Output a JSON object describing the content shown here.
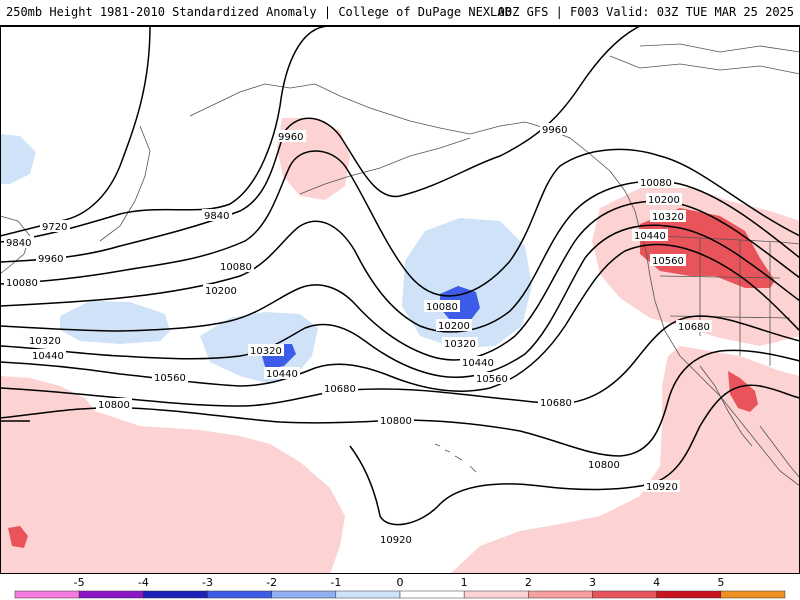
{
  "header": {
    "left": "250mb Height 1981-2010 Standardized Anomaly | College of DuPage NEXLAB",
    "right": "00Z GFS | F003 Valid: 03Z TUE MAR 25 2025"
  },
  "map": {
    "region": "North Pacific / North America",
    "fields": "250mb geopotential height contours with standardized anomaly shading",
    "contour_labels": [
      "9960",
      "9960",
      "9840",
      "9720",
      "9840",
      "9960",
      "10080",
      "10080",
      "10200",
      "10320",
      "10440",
      "10560",
      "10320",
      "10440",
      "10080",
      "10200",
      "10320",
      "10440",
      "10560",
      "10680",
      "10680",
      "10800",
      "10800",
      "10800",
      "10920",
      "10920",
      "10080",
      "10200",
      "10320",
      "10440",
      "10560",
      "10680"
    ]
  },
  "colorbar": {
    "ticks": [
      "-5",
      "-4",
      "-3",
      "-2",
      "-1",
      "0",
      "1",
      "2",
      "3",
      "4",
      "5"
    ],
    "colors": [
      "#f47ae0",
      "#8d17c6",
      "#1a22b8",
      "#3d5de8",
      "#8fb0f0",
      "#cfe2f8",
      "#ffffff",
      "#fcd2d2",
      "#f7a0a0",
      "#e9545a",
      "#c8141e",
      "#f09020"
    ]
  }
}
